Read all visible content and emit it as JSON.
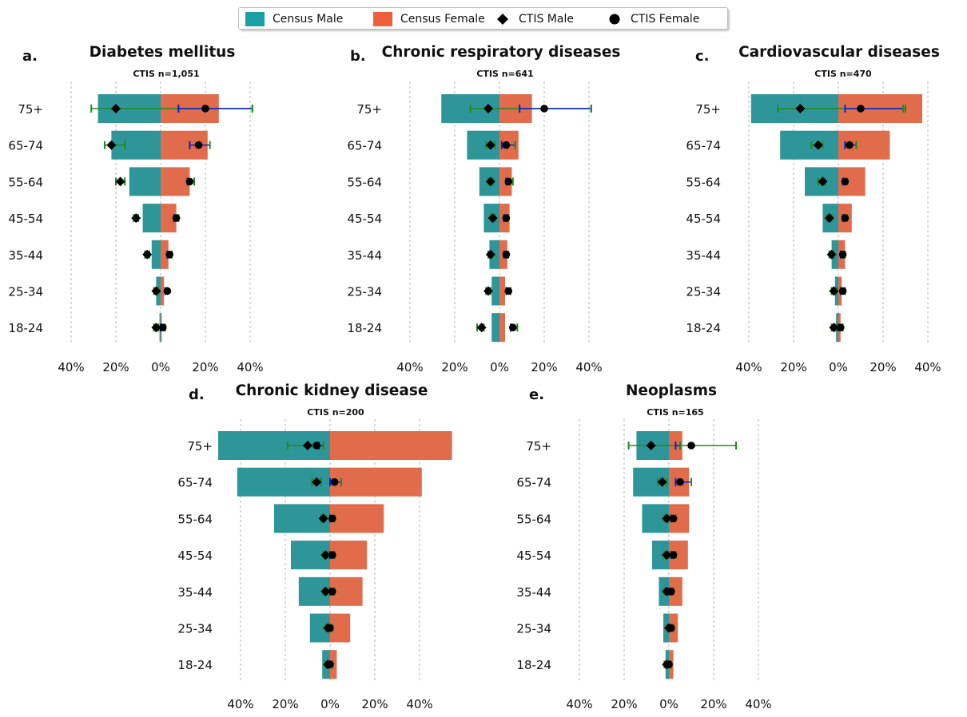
{
  "colors": {
    "census_male": "#2e9699",
    "census_female": "#e06c4c",
    "ctis_male_bar": "#0a1fcc",
    "ctis_male_ci": "#1f8a1f",
    "marker": "#000000"
  },
  "legend": {
    "items": [
      {
        "label": "Census Male",
        "kind": "swatch",
        "color": "#1aa0a4"
      },
      {
        "label": "Census Female",
        "kind": "swatch",
        "color": "#ef5f3c"
      },
      {
        "label": "CTIS Male",
        "kind": "diamond"
      },
      {
        "label": "CTIS Female",
        "kind": "circle"
      }
    ]
  },
  "chart_data": [
    {
      "type": "bar",
      "orientation": "horizontal-pyramid",
      "panel_letter": "a.",
      "title": "Diabetes mellitus",
      "subtitle": "CTIS n=1,051",
      "categories": [
        "75+",
        "65-74",
        "55-64",
        "45-54",
        "35-44",
        "25-34",
        "18-24"
      ],
      "xticks": [
        "40%",
        "20%",
        "0%",
        "20%",
        "40%"
      ],
      "xlim": [
        -40,
        40
      ],
      "census_male": [
        28,
        22,
        14,
        8,
        4,
        2,
        0.5
      ],
      "census_female": [
        26,
        21,
        13,
        7,
        3.5,
        1.5,
        0.5
      ],
      "ctis_male": [
        -20,
        -22,
        -18,
        -11,
        -6,
        -2,
        -2
      ],
      "ctis_female": [
        20,
        17,
        13,
        7,
        4,
        3,
        1
      ],
      "male_ci": [
        [
          -31,
          41
        ],
        [
          -25,
          -16
        ],
        [
          -20,
          -16
        ],
        [
          -12,
          -10
        ],
        [
          -7,
          -5
        ],
        [
          -3,
          -1
        ],
        [
          -3,
          -1
        ]
      ],
      "female_ci": [
        [
          8,
          41
        ],
        [
          13,
          22
        ],
        [
          12,
          15
        ],
        [
          6,
          8
        ],
        [
          3,
          5
        ],
        [
          2,
          3
        ],
        [
          0,
          2
        ]
      ]
    },
    {
      "type": "bar",
      "orientation": "horizontal-pyramid",
      "panel_letter": "b.",
      "title": "Chronic respiratory diseases",
      "subtitle": "CTIS n=641",
      "categories": [
        "75+",
        "65-74",
        "55-64",
        "45-54",
        "35-44",
        "25-34",
        "18-24"
      ],
      "xticks": [
        "40%",
        "20%",
        "0%",
        "20%",
        "40%"
      ],
      "xlim": [
        -40,
        40
      ],
      "census_male": [
        26,
        14.5,
        9,
        7,
        4.5,
        3.5,
        3.5
      ],
      "census_female": [
        14.5,
        8.5,
        5.5,
        4.5,
        3.5,
        2.5,
        2.5
      ],
      "ctis_male": [
        -5,
        -4,
        -4,
        -3,
        -4,
        -5,
        -8
      ],
      "ctis_female": [
        20,
        3,
        4,
        3,
        3,
        4,
        6
      ],
      "male_ci": [
        [
          -13,
          41
        ],
        [
          -6,
          -2
        ],
        [
          -5,
          -3
        ],
        [
          -4,
          -2
        ],
        [
          -5,
          -3
        ],
        [
          -6,
          -4
        ],
        [
          -10,
          -7
        ]
      ],
      "female_ci": [
        [
          9,
          41
        ],
        [
          1,
          7
        ],
        [
          3,
          6
        ],
        [
          2,
          4
        ],
        [
          2,
          4
        ],
        [
          3,
          5
        ],
        [
          5,
          8
        ]
      ]
    },
    {
      "type": "bar",
      "orientation": "horizontal-pyramid",
      "panel_letter": "c.",
      "title": "Cardiovascular diseases",
      "subtitle": "CTIS n=470",
      "categories": [
        "75+",
        "65-74",
        "55-64",
        "45-54",
        "35-44",
        "25-34",
        "18-24"
      ],
      "xticks": [
        "40%",
        "20%",
        "0%",
        "20%",
        "40%"
      ],
      "xlim": [
        -40,
        40
      ],
      "census_male": [
        39,
        26,
        15,
        7,
        3,
        1.5,
        1
      ],
      "census_female": [
        37.5,
        23,
        12,
        6,
        3,
        1.5,
        1
      ],
      "ctis_male": [
        -17,
        -9,
        -7,
        -4,
        -3,
        -2,
        -2
      ],
      "ctis_female": [
        10,
        5,
        3,
        3,
        2,
        2,
        1
      ],
      "male_ci": [
        [
          -27,
          30
        ],
        [
          -12,
          -7
        ],
        [
          -9,
          -6
        ],
        [
          -5,
          -3
        ],
        [
          -4,
          -2
        ],
        [
          -3,
          -1
        ],
        [
          -3,
          -1
        ]
      ],
      "female_ci": [
        [
          3,
          29
        ],
        [
          3,
          8
        ],
        [
          2,
          4
        ],
        [
          2,
          4
        ],
        [
          1,
          3
        ],
        [
          1,
          3
        ],
        [
          0,
          2
        ]
      ]
    },
    {
      "type": "bar",
      "orientation": "horizontal-pyramid",
      "panel_letter": "d.",
      "title": "Chronic kidney disease",
      "subtitle": "CTIS n=200",
      "categories": [
        "75+",
        "65-74",
        "55-64",
        "45-54",
        "35-44",
        "25-34",
        "18-24"
      ],
      "xticks": [
        "40%",
        "20%",
        "0%",
        "20%",
        "40%"
      ],
      "xlim": [
        -40,
        40
      ],
      "census_male": [
        50,
        41.5,
        25,
        17.5,
        14,
        9,
        3.5
      ],
      "census_female": [
        54.5,
        41,
        24,
        16.5,
        14.5,
        9,
        3
      ],
      "ctis_male": [
        -10,
        -6,
        -3,
        -2,
        -2,
        -1,
        -1
      ],
      "ctis_female": [
        -6,
        2,
        1,
        1,
        1,
        0,
        0
      ],
      "male_ci": [
        [
          -19,
          -5
        ],
        [
          -8,
          -4
        ],
        [
          -4,
          -2
        ],
        [
          -3,
          -1
        ],
        [
          -3,
          -1
        ],
        [
          -2,
          0
        ],
        [
          -2,
          0
        ]
      ],
      "female_ci": [
        [
          -5,
          -3
        ],
        [
          0,
          5
        ],
        [
          0,
          2
        ],
        [
          0,
          2
        ],
        [
          0,
          2
        ],
        [
          -1,
          1
        ],
        [
          -1,
          1
        ]
      ]
    },
    {
      "type": "bar",
      "orientation": "horizontal-pyramid",
      "panel_letter": "e.",
      "title": "Neoplasms",
      "subtitle": "CTIS n=165",
      "categories": [
        "75+",
        "65-74",
        "55-64",
        "45-54",
        "35-44",
        "25-34",
        "18-24"
      ],
      "xticks": [
        "40%",
        "20%",
        "0%",
        "20%",
        "40%"
      ],
      "xlim": [
        -40,
        40
      ],
      "census_male": [
        14.5,
        16,
        12,
        7.5,
        4.5,
        2.5,
        1.5
      ],
      "census_female": [
        6,
        9,
        9,
        8.5,
        6,
        4,
        2
      ],
      "ctis_male": [
        -8,
        -3,
        -1,
        -1,
        -1,
        0,
        -1
      ],
      "ctis_female": [
        10,
        5,
        2,
        2,
        1,
        1,
        0
      ],
      "male_ci": [
        [
          -18,
          30
        ],
        [
          -5,
          -1
        ],
        [
          -2,
          0
        ],
        [
          -2,
          0
        ],
        [
          -2,
          0
        ],
        [
          -1,
          1
        ],
        [
          -2,
          0
        ]
      ],
      "female_ci": [
        [
          3,
          5
        ],
        [
          3,
          10
        ],
        [
          1,
          3
        ],
        [
          1,
          3
        ],
        [
          0,
          2
        ],
        [
          0,
          2
        ],
        [
          -1,
          1
        ]
      ]
    }
  ]
}
